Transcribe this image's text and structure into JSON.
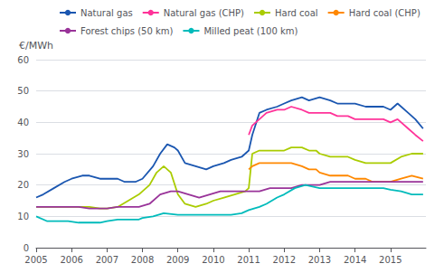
{
  "chart_data": {
    "type": "line",
    "ylabel": "€/MWh",
    "xlim": [
      2005.0,
      2016.0
    ],
    "xticks": [
      2005,
      2006,
      2007,
      2008,
      2009,
      2010,
      2011,
      2012,
      2013,
      2014,
      2015
    ],
    "ylim": [
      0,
      60
    ],
    "yticks": [
      0,
      10,
      20,
      30,
      40,
      50,
      60
    ],
    "grid": true,
    "legend": "upper left",
    "series": [
      {
        "name": "Natural gas",
        "color": "#1a56b0",
        "x": [
          2005.0,
          2005.2,
          2005.5,
          2005.8,
          2006.0,
          2006.3,
          2006.5,
          2006.8,
          2007.0,
          2007.3,
          2007.5,
          2007.8,
          2008.0,
          2008.3,
          2008.5,
          2008.7,
          2008.9,
          2009.0,
          2009.2,
          2009.5,
          2009.8,
          2010.0,
          2010.3,
          2010.5,
          2010.8,
          2011.0,
          2011.1,
          2011.3,
          2011.5,
          2011.8,
          2012.0,
          2012.2,
          2012.5,
          2012.7,
          2013.0,
          2013.3,
          2013.5,
          2013.8,
          2014.0,
          2014.3,
          2014.5,
          2014.8,
          2015.0,
          2015.2,
          2015.5,
          2015.7,
          2015.92
        ],
        "values": [
          16,
          17,
          19,
          21,
          22,
          23,
          23,
          22,
          22,
          22,
          21,
          21,
          22,
          26,
          30,
          33,
          32,
          31,
          27,
          26,
          25,
          26,
          27,
          28,
          29,
          31,
          36,
          43,
          44,
          45,
          46,
          47,
          48,
          47,
          48,
          47,
          46,
          46,
          46,
          45,
          45,
          45,
          44,
          46,
          43,
          41,
          38
        ]
      },
      {
        "name": "Natural gas (CHP)",
        "color": "#ff3399",
        "x": [
          2011.0,
          2011.1,
          2011.3,
          2011.5,
          2011.8,
          2012.0,
          2012.2,
          2012.5,
          2012.7,
          2013.0,
          2013.3,
          2013.5,
          2013.8,
          2014.0,
          2014.3,
          2014.5,
          2014.8,
          2015.0,
          2015.2,
          2015.5,
          2015.7,
          2015.92
        ],
        "values": [
          36,
          39,
          41,
          43,
          44,
          44,
          45,
          44,
          43,
          43,
          43,
          42,
          42,
          41,
          41,
          41,
          41,
          40,
          41,
          38,
          36,
          34
        ]
      },
      {
        "name": "Hard coal",
        "color": "#aacc00",
        "x": [
          2005.0,
          2005.3,
          2005.6,
          2005.9,
          2006.2,
          2006.5,
          2006.8,
          2007.0,
          2007.3,
          2007.6,
          2007.9,
          2008.2,
          2008.4,
          2008.6,
          2008.8,
          2009.0,
          2009.2,
          2009.5,
          2009.8,
          2010.0,
          2010.3,
          2010.6,
          2010.9,
          2011.0,
          2011.1,
          2011.3,
          2011.5,
          2011.8,
          2012.0,
          2012.2,
          2012.5,
          2012.7,
          2012.9,
          2013.0,
          2013.3,
          2013.5,
          2013.8,
          2014.0,
          2014.3,
          2014.5,
          2014.8,
          2015.0,
          2015.3,
          2015.6,
          2015.92
        ],
        "values": [
          13,
          13,
          13,
          13,
          13,
          13,
          12.5,
          12.5,
          13,
          15,
          17,
          20,
          24,
          26,
          24,
          17,
          14,
          13,
          14,
          15,
          16,
          17,
          18,
          19,
          30,
          31,
          31,
          31,
          31,
          32,
          32,
          31,
          31,
          30,
          29,
          29,
          29,
          28,
          27,
          27,
          27,
          27,
          29,
          30,
          30
        ]
      },
      {
        "name": "Hard coal (CHP)",
        "color": "#ff8800",
        "x": [
          2011.0,
          2011.1,
          2011.3,
          2011.5,
          2011.8,
          2012.0,
          2012.2,
          2012.5,
          2012.7,
          2012.9,
          2013.0,
          2013.3,
          2013.5,
          2013.8,
          2014.0,
          2014.3,
          2014.5,
          2014.8,
          2015.0,
          2015.3,
          2015.6,
          2015.92
        ],
        "values": [
          25,
          26,
          27,
          27,
          27,
          27,
          27,
          26,
          25,
          25,
          24,
          23,
          23,
          23,
          22,
          22,
          21,
          21,
          21,
          22,
          23,
          22
        ]
      },
      {
        "name": "Forest chips (50 km)",
        "color": "#993399",
        "x": [
          2005.0,
          2005.3,
          2005.6,
          2005.9,
          2006.2,
          2006.5,
          2006.8,
          2007.0,
          2007.3,
          2007.6,
          2007.9,
          2008.2,
          2008.5,
          2008.8,
          2009.0,
          2009.3,
          2009.6,
          2009.9,
          2010.2,
          2010.5,
          2010.8,
          2011.0,
          2011.3,
          2011.6,
          2011.9,
          2012.2,
          2012.5,
          2012.8,
          2013.0,
          2013.3,
          2013.6,
          2013.9,
          2014.2,
          2014.5,
          2014.8,
          2015.0,
          2015.3,
          2015.6,
          2015.92
        ],
        "values": [
          13,
          13,
          13,
          13,
          13,
          12.5,
          12.5,
          12.5,
          13,
          13,
          13,
          14,
          17,
          18,
          18,
          17,
          16,
          17,
          18,
          18,
          18,
          18,
          18,
          19,
          19,
          19,
          20,
          20,
          20,
          21,
          21,
          21,
          21,
          21,
          21,
          21,
          21,
          21,
          21
        ]
      },
      {
        "name": "Milled peat (100 km)",
        "color": "#00bbbb",
        "x": [
          2005.0,
          2005.3,
          2005.6,
          2005.9,
          2006.2,
          2006.5,
          2006.8,
          2007.0,
          2007.3,
          2007.6,
          2007.9,
          2008.0,
          2008.3,
          2008.6,
          2009.0,
          2009.3,
          2009.6,
          2009.9,
          2010.2,
          2010.5,
          2010.8,
          2011.0,
          2011.3,
          2011.5,
          2011.8,
          2012.0,
          2012.3,
          2012.6,
          2013.0,
          2013.3,
          2013.6,
          2013.9,
          2014.2,
          2014.5,
          2014.8,
          2015.0,
          2015.3,
          2015.6,
          2015.92
        ],
        "values": [
          10,
          8.5,
          8.5,
          8.5,
          8,
          8,
          8,
          8.5,
          9,
          9,
          9,
          9.5,
          10,
          11,
          10.5,
          10.5,
          10.5,
          10.5,
          10.5,
          10.5,
          11,
          12,
          13,
          14,
          16,
          17,
          19,
          20,
          19,
          19,
          19,
          19,
          19,
          19,
          19,
          18.5,
          18,
          17,
          17
        ]
      }
    ]
  }
}
